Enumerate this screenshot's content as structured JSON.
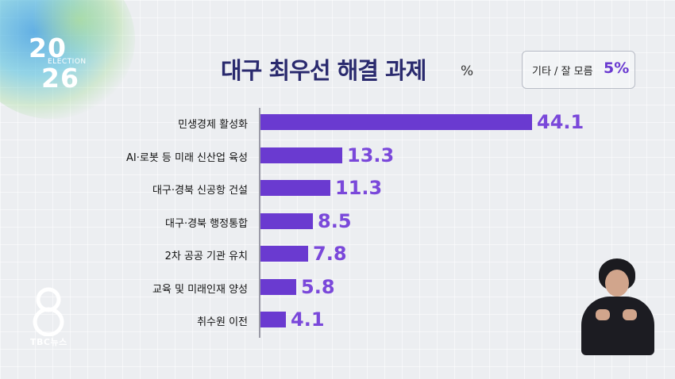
{
  "logo": {
    "year_top": "20",
    "year_bottom": "26",
    "word": "ELECTION"
  },
  "title": "대구 최우선 해결 과제",
  "unit": "%",
  "other": {
    "label": "기타 / 잘 모름",
    "value": "5%"
  },
  "channel": {
    "number": "8",
    "name": "TBC뉴스"
  },
  "colors": {
    "bar": "#6a3ad0",
    "value_text": "#7a48da",
    "title": "#2a2a6e"
  },
  "chart_data": {
    "type": "bar",
    "orientation": "horizontal",
    "title": "대구 최우선 해결 과제",
    "unit": "%",
    "categories": [
      "민생경제 활성화",
      "AI·로봇 등 미래 신산업 육성",
      "대구·경북 신공항 건설",
      "대구·경북 행정통합",
      "2차 공공 기관 유치",
      "교육 및 미래인재 양성",
      "취수원 이전"
    ],
    "values": [
      44.1,
      13.3,
      11.3,
      8.5,
      7.8,
      5.8,
      4.1
    ],
    "value_labels": [
      "44.1",
      "13.3",
      "11.3",
      "8.5",
      "7.8",
      "5.8",
      "4.1"
    ],
    "grid": false,
    "legend": "none"
  }
}
